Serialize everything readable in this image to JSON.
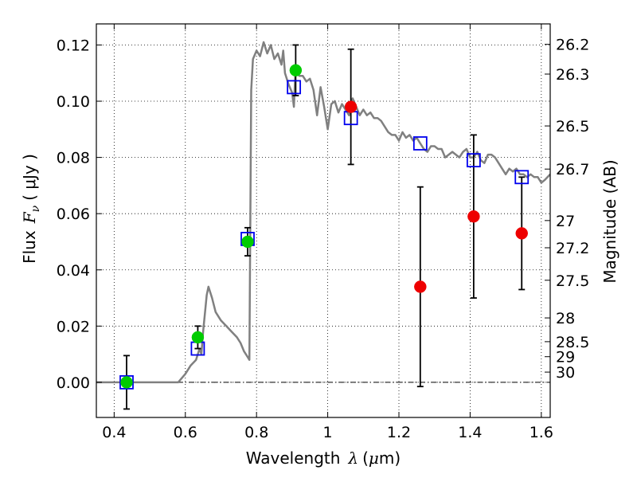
{
  "chart_data": {
    "type": "scatter",
    "title": "",
    "xlabel": {
      "prefix": "Wavelength",
      "symbol": "λ",
      "unit_open": "(",
      "unit_mu": "μ",
      "unit_rest": "m)"
    },
    "ylabel": {
      "prefix": "Flux",
      "symbol": "F",
      "subscript": "ν",
      "unit": "(  μJy )"
    },
    "ylabel_right": "Magnitude (AB)",
    "xlim": [
      0.35,
      1.625
    ],
    "ylim": [
      -0.0125,
      0.1275
    ],
    "grid": true,
    "zero_line": 0.0,
    "x_ticks": [
      {
        "value": 0.4,
        "label": "0.4"
      },
      {
        "value": 0.6,
        "label": "0.6"
      },
      {
        "value": 0.8,
        "label": "0.8"
      },
      {
        "value": 1.0,
        "label": "1"
      },
      {
        "value": 1.2,
        "label": "1.2"
      },
      {
        "value": 1.4,
        "label": "1.4"
      },
      {
        "value": 1.6,
        "label": "1.6"
      }
    ],
    "y_ticks": [
      {
        "value": 0.0,
        "label": "0.00"
      },
      {
        "value": 0.02,
        "label": "0.02"
      },
      {
        "value": 0.04,
        "label": "0.04"
      },
      {
        "value": 0.06,
        "label": "0.06"
      },
      {
        "value": 0.08,
        "label": "0.08"
      },
      {
        "value": 0.1,
        "label": "0.10"
      },
      {
        "value": 0.12,
        "label": "0.12"
      }
    ],
    "right_ticks": [
      {
        "mag": 26.2,
        "label": "26.2"
      },
      {
        "mag": 26.3,
        "label": "26.3"
      },
      {
        "mag": 26.5,
        "label": "26.5"
      },
      {
        "mag": 26.7,
        "label": "26.7"
      },
      {
        "mag": 27.0,
        "label": "27"
      },
      {
        "mag": 27.2,
        "label": "27.2"
      },
      {
        "mag": 27.5,
        "label": "27.5"
      },
      {
        "mag": 28.0,
        "label": "28"
      },
      {
        "mag": 28.5,
        "label": "28.5"
      },
      {
        "mag": 29.0,
        "label": "29"
      },
      {
        "mag": 30.0,
        "label": "30"
      }
    ],
    "series": [
      {
        "kind": "model_spectrum",
        "color": "#808080",
        "x": [
          0.35,
          0.58,
          0.6,
          0.615,
          0.63,
          0.64,
          0.645,
          0.65,
          0.66,
          0.665,
          0.675,
          0.685,
          0.7,
          0.715,
          0.73,
          0.745,
          0.755,
          0.765,
          0.775,
          0.78,
          0.785,
          0.79,
          0.8,
          0.81,
          0.82,
          0.83,
          0.84,
          0.85,
          0.86,
          0.87,
          0.875,
          0.88,
          0.89,
          0.9,
          0.905,
          0.91,
          0.92,
          0.93,
          0.94,
          0.95,
          0.96,
          0.97,
          0.98,
          0.99,
          1.0,
          1.01,
          1.02,
          1.03,
          1.04,
          1.05,
          1.06,
          1.07,
          1.08,
          1.09,
          1.1,
          1.11,
          1.12,
          1.13,
          1.14,
          1.15,
          1.16,
          1.17,
          1.18,
          1.19,
          1.2,
          1.21,
          1.22,
          1.23,
          1.24,
          1.25,
          1.26,
          1.27,
          1.28,
          1.29,
          1.3,
          1.31,
          1.32,
          1.33,
          1.34,
          1.35,
          1.36,
          1.37,
          1.38,
          1.39,
          1.4,
          1.41,
          1.42,
          1.43,
          1.44,
          1.45,
          1.46,
          1.47,
          1.48,
          1.49,
          1.5,
          1.51,
          1.52,
          1.53,
          1.54,
          1.55,
          1.56,
          1.57,
          1.58,
          1.59,
          1.6,
          1.61,
          1.625
        ],
        "y": [
          0.0,
          0.0,
          0.003,
          0.006,
          0.008,
          0.012,
          0.01,
          0.018,
          0.031,
          0.034,
          0.03,
          0.025,
          0.022,
          0.02,
          0.018,
          0.016,
          0.014,
          0.011,
          0.009,
          0.008,
          0.104,
          0.115,
          0.118,
          0.116,
          0.121,
          0.117,
          0.12,
          0.115,
          0.117,
          0.113,
          0.118,
          0.11,
          0.106,
          0.103,
          0.098,
          0.113,
          0.109,
          0.109,
          0.107,
          0.108,
          0.104,
          0.095,
          0.105,
          0.098,
          0.09,
          0.099,
          0.1,
          0.096,
          0.099,
          0.097,
          0.095,
          0.101,
          0.098,
          0.095,
          0.097,
          0.095,
          0.096,
          0.094,
          0.094,
          0.093,
          0.091,
          0.089,
          0.088,
          0.088,
          0.086,
          0.089,
          0.087,
          0.088,
          0.086,
          0.087,
          0.085,
          0.083,
          0.082,
          0.084,
          0.084,
          0.083,
          0.083,
          0.08,
          0.081,
          0.082,
          0.081,
          0.08,
          0.082,
          0.083,
          0.08,
          0.08,
          0.082,
          0.079,
          0.078,
          0.081,
          0.081,
          0.08,
          0.078,
          0.076,
          0.074,
          0.076,
          0.075,
          0.076,
          0.074,
          0.074,
          0.073,
          0.074,
          0.073,
          0.073,
          0.071,
          0.072,
          0.074
        ]
      },
      {
        "kind": "model_photometry",
        "marker": "open-square",
        "color": "#0000ee",
        "x": [
          0.435,
          0.635,
          0.775,
          0.905,
          1.065,
          1.26,
          1.41,
          1.545
        ],
        "y": [
          0.0,
          0.012,
          0.051,
          0.105,
          0.094,
          0.085,
          0.079,
          0.073
        ]
      },
      {
        "kind": "detections",
        "marker": "filled-circle",
        "color": "#00cc00",
        "x": [
          0.435,
          0.635,
          0.775,
          0.91
        ],
        "y": [
          0.0,
          0.016,
          0.05,
          0.111
        ],
        "err": [
          0.0095,
          0.004,
          0.005,
          0.009
        ]
      },
      {
        "kind": "nir_points",
        "marker": "filled-circle",
        "color": "#ee0000",
        "x": [
          1.065,
          1.26,
          1.41,
          1.545
        ],
        "y": [
          0.098,
          0.034,
          0.059,
          0.053
        ],
        "err": [
          0.0205,
          0.0355,
          0.029,
          0.02
        ]
      }
    ]
  }
}
